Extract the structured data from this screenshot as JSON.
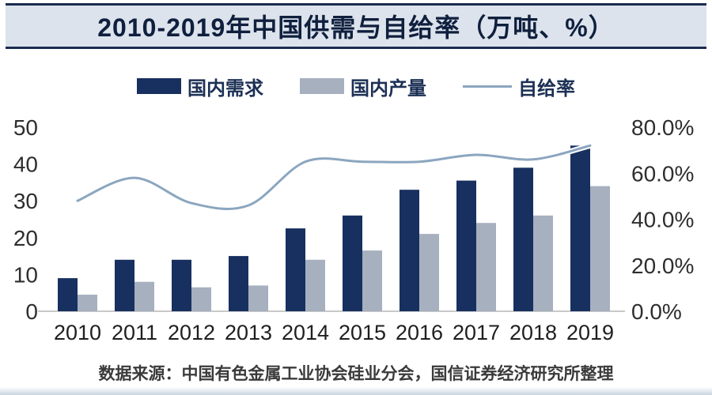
{
  "title": "2010-2019年中国供需与自给率（万吨、%）",
  "source": "数据来源：中国有色金属工业协会硅业分会，国信证券经济研究所整理",
  "colors": {
    "demand_bar": "#17305f",
    "production_bar": "#a6b0bf",
    "rate_line": "#8ba6bf",
    "title_band_bg": "#dce3ec",
    "title_band_border": "#1b2c50",
    "axis_text": "#2e2e2e",
    "baseline": "#c9c9c9"
  },
  "legend": [
    {
      "label": "国内需求",
      "type": "bar",
      "color": "#17305f"
    },
    {
      "label": "国内产量",
      "type": "bar",
      "color": "#a6b0bf"
    },
    {
      "label": "自给率",
      "type": "line",
      "color": "#8ba6bf"
    }
  ],
  "chart_data": {
    "type": "bar",
    "subtype": "bar+line combo, dual axis",
    "title": "2010-2019年中国供需与自给率（万吨、%）",
    "categories": [
      "2010",
      "2011",
      "2012",
      "2013",
      "2014",
      "2015",
      "2016",
      "2017",
      "2018",
      "2019"
    ],
    "series": [
      {
        "name": "国内需求",
        "type": "bar",
        "axis": "left",
        "unit": "万吨",
        "color": "#17305f",
        "values": [
          9,
          14,
          14,
          15,
          22.5,
          26,
          33,
          35.5,
          39,
          45
        ]
      },
      {
        "name": "国内产量",
        "type": "bar",
        "axis": "left",
        "unit": "万吨",
        "color": "#a6b0bf",
        "values": [
          4.5,
          8,
          6.5,
          7,
          14,
          16.5,
          21,
          24,
          26,
          34
        ]
      },
      {
        "name": "自给率",
        "type": "line",
        "axis": "right",
        "unit": "%",
        "color": "#8ba6bf",
        "values": [
          48,
          58,
          47,
          46,
          65,
          65,
          65,
          68,
          66,
          72
        ]
      }
    ],
    "left_axis": {
      "min": 0,
      "max": 50,
      "ticks": [
        0,
        10,
        20,
        30,
        40,
        50
      ]
    },
    "right_axis": {
      "min": 0,
      "max": 80,
      "tick_labels": [
        "0.0%",
        "20.0%",
        "40.0%",
        "60.0%",
        "80.0%"
      ]
    },
    "grid": false,
    "legend_position": "top",
    "xlabel": "",
    "ylabel_left": "万吨",
    "ylabel_right": "%"
  }
}
